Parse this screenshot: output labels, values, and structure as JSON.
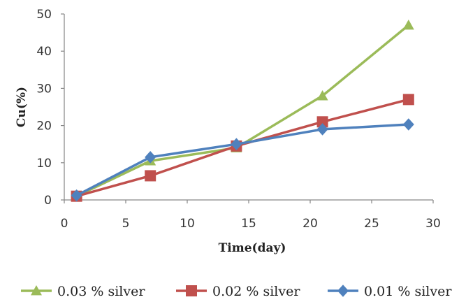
{
  "chart_data": {
    "type": "line",
    "xlabel": "Time(day)",
    "ylabel": "Cu(%)",
    "xlim": [
      0,
      30
    ],
    "ylim": [
      0,
      50
    ],
    "xticks": [
      0,
      5,
      10,
      15,
      20,
      25,
      30
    ],
    "yticks": [
      0,
      10,
      20,
      30,
      40,
      50
    ],
    "grid": false,
    "legend": "bottom",
    "series": [
      {
        "name": "0.03 % silver",
        "color": "#9bbb59",
        "marker": "triangle",
        "x": [
          1,
          7,
          14,
          21,
          28
        ],
        "y": [
          1,
          10.5,
          14,
          28,
          47
        ]
      },
      {
        "name": "0.02 % silver",
        "color": "#c0504d",
        "marker": "square",
        "x": [
          1,
          7,
          14,
          21,
          28
        ],
        "y": [
          1,
          6.5,
          14.5,
          21,
          27
        ]
      },
      {
        "name": "0.01 % silver",
        "color": "#4f81bd",
        "marker": "diamond",
        "x": [
          1,
          7,
          14,
          21,
          28
        ],
        "y": [
          1.2,
          11.5,
          15,
          19,
          20.3
        ]
      }
    ]
  }
}
